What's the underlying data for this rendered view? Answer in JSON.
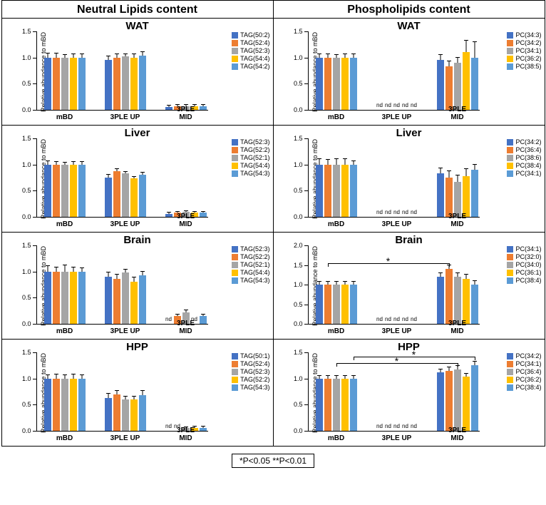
{
  "colors": {
    "series": [
      "#4472c4",
      "#ed7d31",
      "#a5a5a5",
      "#ffc000",
      "#5b9bd5"
    ],
    "background": "#ffffff",
    "axis": "#000000"
  },
  "column_titles": [
    "Neutral Lipids content",
    "Phospholipids content"
  ],
  "ylabel": "Relative abundance to mBD",
  "xlabels": [
    "mBD",
    "3PLE UP",
    "3PLE MID"
  ],
  "footer": "*P<0.05  **P<0.01",
  "panels": [
    {
      "col": 0,
      "title": "WAT",
      "ymax": 1.5,
      "yticks": [
        0,
        0.5,
        1.0,
        1.5
      ],
      "legend": [
        "TAG(50:2)",
        "TAG(52:4)",
        "TAG(52:3)",
        "TAG(54:4)",
        "TAG(54:2)"
      ],
      "groups": [
        {
          "vals": [
            1.0,
            1.0,
            1.0,
            1.0,
            1.0
          ],
          "err": [
            0.08,
            0.08,
            0.05,
            0.06,
            0.06
          ]
        },
        {
          "vals": [
            0.95,
            1.0,
            1.02,
            1.0,
            1.04
          ],
          "err": [
            0.07,
            0.06,
            0.05,
            0.06,
            0.06
          ]
        },
        {
          "vals": [
            0.06,
            0.07,
            0.07,
            0.07,
            0.07
          ],
          "err": [
            0.02,
            0.02,
            0.02,
            0.02,
            0.02
          ]
        }
      ]
    },
    {
      "col": 0,
      "title": "Liver",
      "ymax": 1.5,
      "yticks": [
        0,
        0.5,
        1.0,
        1.5
      ],
      "legend": [
        "TAG(52:3)",
        "TAG(52:2)",
        "TAG(52:1)",
        "TAG(54:4)",
        "TAG(54:3)"
      ],
      "groups": [
        {
          "vals": [
            1.0,
            1.0,
            1.0,
            1.0,
            1.0
          ],
          "err": [
            0.06,
            0.05,
            0.04,
            0.05,
            0.05
          ]
        },
        {
          "vals": [
            0.75,
            0.87,
            0.83,
            0.73,
            0.8
          ],
          "err": [
            0.05,
            0.04,
            0.03,
            0.03,
            0.04
          ]
        },
        {
          "vals": [
            0.06,
            0.08,
            0.09,
            0.08,
            0.08
          ],
          "err": [
            0.02,
            0.02,
            0.02,
            0.02,
            0.02
          ]
        }
      ]
    },
    {
      "col": 0,
      "title": "Brain",
      "ymax": 1.5,
      "yticks": [
        0,
        0.5,
        1.0,
        1.5
      ],
      "legend": [
        "TAG(52:3)",
        "TAG(52:2)",
        "TAG(52:1)",
        "TAG(54:4)",
        "TAG(54:3)"
      ],
      "groups": [
        {
          "vals": [
            1.0,
            1.0,
            1.0,
            1.0,
            1.0
          ],
          "err": [
            0.1,
            0.08,
            0.12,
            0.08,
            0.07
          ]
        },
        {
          "vals": [
            0.9,
            0.86,
            0.98,
            0.8,
            0.93
          ],
          "err": [
            0.08,
            0.08,
            0.06,
            0.08,
            0.06
          ]
        },
        {
          "vals": [
            0,
            0.15,
            0.22,
            0,
            0.15
          ],
          "err": [
            0,
            0.03,
            0.04,
            0,
            0.03
          ],
          "nd": [
            0,
            3
          ]
        }
      ]
    },
    {
      "col": 0,
      "title": "HPP",
      "ymax": 1.5,
      "yticks": [
        0,
        0.5,
        1.0,
        1.5
      ],
      "legend": [
        "TAG(50:1)",
        "TAG(52:4)",
        "TAG(52:3)",
        "TAG(52:2)",
        "TAG(54:3)"
      ],
      "groups": [
        {
          "vals": [
            1.0,
            1.0,
            1.0,
            1.0,
            1.0
          ],
          "err": [
            0.07,
            0.08,
            0.06,
            0.08,
            0.06
          ]
        },
        {
          "vals": [
            0.63,
            0.69,
            0.6,
            0.6,
            0.68
          ],
          "err": [
            0.08,
            0.08,
            0.05,
            0.05,
            0.08
          ]
        },
        {
          "vals": [
            0,
            0,
            0.05,
            0.06,
            0.06
          ],
          "err": [
            0,
            0,
            0.02,
            0.02,
            0.02
          ],
          "nd": [
            0,
            1
          ]
        }
      ]
    },
    {
      "col": 1,
      "title": "WAT",
      "ymax": 1.5,
      "yticks": [
        0,
        0.5,
        1.0,
        1.5
      ],
      "legend": [
        "PC(34:3)",
        "PC(34:2)",
        "PC(34:1)",
        "PC(36:2)",
        "PC(38:5)"
      ],
      "groups": [
        {
          "vals": [
            1.0,
            1.0,
            1.0,
            1.0,
            1.0
          ],
          "err": [
            0.06,
            0.07,
            0.05,
            0.06,
            0.06
          ]
        },
        {
          "vals": [
            0,
            0,
            0,
            0,
            0
          ],
          "err": [
            0,
            0,
            0,
            0,
            0
          ],
          "nd": [
            0,
            1,
            2,
            3,
            4
          ]
        },
        {
          "vals": [
            0.95,
            0.83,
            0.9,
            1.1,
            1.0
          ],
          "err": [
            0.1,
            0.1,
            0.1,
            0.22,
            0.3
          ]
        }
      ]
    },
    {
      "col": 1,
      "title": "Liver",
      "ymax": 1.5,
      "yticks": [
        0,
        0.5,
        1.0,
        1.5
      ],
      "legend": [
        "PC(34:2)",
        "PC(36:4)",
        "PC(38:6)",
        "PC(38:4)",
        "PC(34:1)"
      ],
      "groups": [
        {
          "vals": [
            1.0,
            1.0,
            1.0,
            1.0,
            1.0
          ],
          "err": [
            0.1,
            0.09,
            0.1,
            0.1,
            0.06
          ]
        },
        {
          "vals": [
            0,
            0,
            0,
            0,
            0
          ],
          "err": [
            0,
            0,
            0,
            0,
            0
          ],
          "nd": [
            0,
            1,
            2,
            3,
            4
          ]
        },
        {
          "vals": [
            0.83,
            0.75,
            0.67,
            0.78,
            0.9
          ],
          "err": [
            0.1,
            0.12,
            0.12,
            0.14,
            0.1
          ]
        }
      ]
    },
    {
      "col": 1,
      "title": "Brain",
      "ymax": 2.0,
      "yticks": [
        0,
        0.5,
        1.0,
        1.5,
        2.0
      ],
      "legend": [
        "PC(34:1)",
        "PC(32:0)",
        "PC(34:0)",
        "PC(36:1)",
        "PC(38:4)"
      ],
      "groups": [
        {
          "vals": [
            1.0,
            1.0,
            1.0,
            1.0,
            1.0
          ],
          "err": [
            0.08,
            0.08,
            0.07,
            0.07,
            0.07
          ]
        },
        {
          "vals": [
            0,
            0,
            0,
            0,
            0
          ],
          "err": [
            0,
            0,
            0,
            0,
            0
          ],
          "nd": [
            0,
            1,
            2,
            3,
            4
          ]
        },
        {
          "vals": [
            1.2,
            1.4,
            1.2,
            1.15,
            1.0
          ],
          "err": [
            0.1,
            0.1,
            0.1,
            0.1,
            0.1
          ]
        }
      ],
      "sig": [
        {
          "from_g": 0,
          "from_b": 1,
          "to_g": 2,
          "to_b": 1,
          "y": 1.55,
          "text": "*"
        }
      ]
    },
    {
      "col": 1,
      "title": "HPP",
      "ymax": 1.5,
      "yticks": [
        0,
        0.5,
        1.0,
        1.5
      ],
      "legend": [
        "PC(34:2)",
        "PC(34:1)",
        "PC(36:4)",
        "PC(36:2)",
        "PC(38:4)"
      ],
      "groups": [
        {
          "vals": [
            1.0,
            1.0,
            1.0,
            1.0,
            1.0
          ],
          "err": [
            0.05,
            0.05,
            0.05,
            0.05,
            0.05
          ]
        },
        {
          "vals": [
            0,
            0,
            0,
            0,
            0
          ],
          "err": [
            0,
            0,
            0,
            0,
            0
          ],
          "nd": [
            0,
            1,
            2,
            3,
            4
          ]
        },
        {
          "vals": [
            1.12,
            1.15,
            1.17,
            1.03,
            1.26
          ],
          "err": [
            0.05,
            0.06,
            0.07,
            0.06,
            0.06
          ]
        }
      ],
      "sig": [
        {
          "from_g": 0,
          "from_b": 2,
          "to_g": 2,
          "to_b": 2,
          "y": 1.3,
          "text": "*"
        },
        {
          "from_g": 0,
          "from_b": 4,
          "to_g": 2,
          "to_b": 4,
          "y": 1.42,
          "text": "*"
        }
      ]
    }
  ]
}
